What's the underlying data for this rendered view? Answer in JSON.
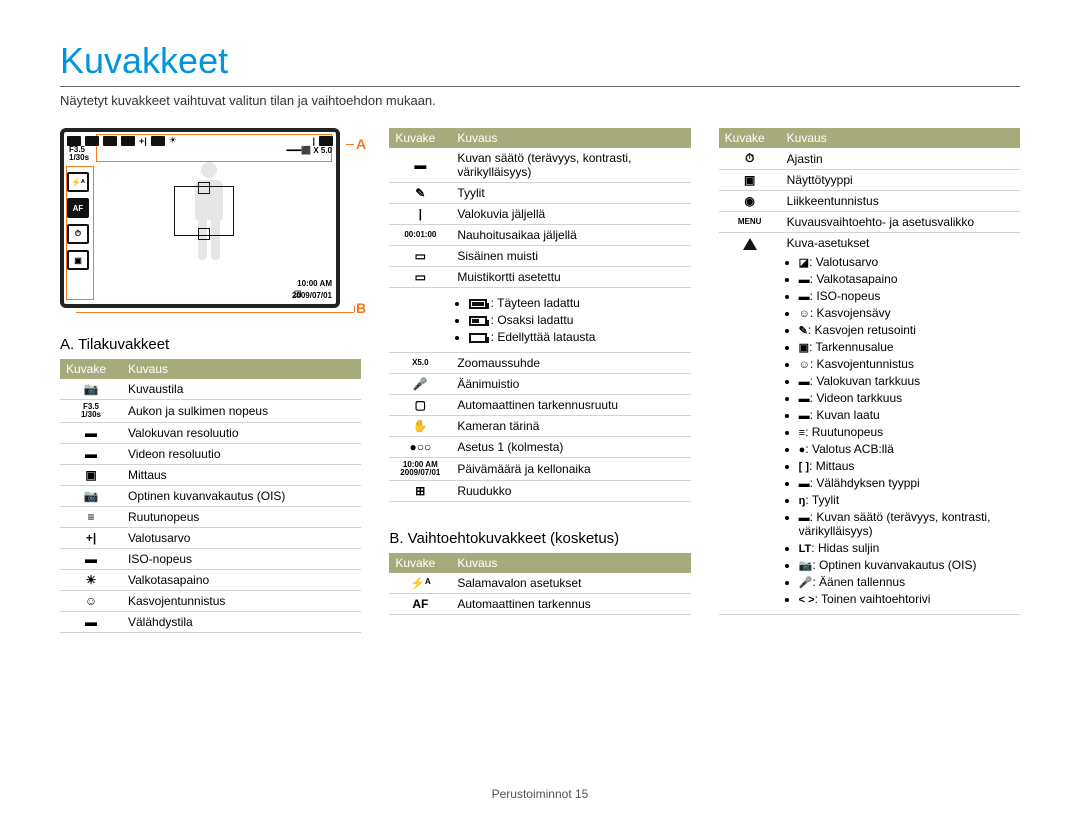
{
  "page": {
    "title": "Kuvakkeet",
    "subtitle": "Näytetyt kuvakkeet vaihtuvat valitun tilan ja vaihtoehdon mukaan.",
    "footer": "Perustoiminnot  15"
  },
  "labels": {
    "A": "A",
    "B": "B"
  },
  "screen": {
    "f": "F3.5",
    "shutter": "1/30s",
    "zoom": "X 5.0",
    "time": "10:00 AM",
    "date": "2009/07/01",
    "af": "AF",
    "fla": "⚡ᴬ"
  },
  "sectionA": {
    "title": "A. Tilakuvakkeet",
    "cols": {
      "icon": "Kuvake",
      "desc": "Kuvaus"
    },
    "rows": [
      {
        "icon": "📷",
        "desc": "Kuvaustila"
      },
      {
        "icon": "F3.5\n1/30s",
        "desc": "Aukon ja sulkimen nopeus",
        "small": true
      },
      {
        "icon": "▬",
        "desc": "Valokuvan resoluutio"
      },
      {
        "icon": "▬",
        "desc": "Videon resoluutio"
      },
      {
        "icon": "▣",
        "desc": "Mittaus"
      },
      {
        "icon": "📷",
        "desc": "Optinen kuvanvakautus (OIS)"
      },
      {
        "icon": "≡",
        "desc": "Ruutunopeus"
      },
      {
        "icon": "+|",
        "desc": "Valotusarvo"
      },
      {
        "icon": "▬",
        "desc": "ISO-nopeus"
      },
      {
        "icon": "☀",
        "desc": "Valkotasapaino"
      },
      {
        "icon": "☺",
        "desc": "Kasvojentunnistus"
      },
      {
        "icon": "▬",
        "desc": "Välähdystila"
      }
    ]
  },
  "sectionA2": {
    "cols": {
      "icon": "Kuvake",
      "desc": "Kuvaus"
    },
    "rows": [
      {
        "icon": "▬",
        "desc": "Kuvan säätö (terävyys, kontrasti, värikylläisyys)"
      },
      {
        "icon": "✎",
        "desc": "Tyylit"
      },
      {
        "icon": "|",
        "desc": "Valokuvia jäljellä"
      },
      {
        "icon": "00:01:00",
        "desc": "Nauhoitusaikaa jäljellä",
        "small": true
      },
      {
        "icon": "▭",
        "desc": "Sisäinen muisti"
      },
      {
        "icon": "▭",
        "desc": "Muistikortti asetettu"
      }
    ],
    "battery": [
      {
        "cls": "full",
        "desc": ": Täyteen ladattu"
      },
      {
        "cls": "half",
        "desc": ": Osaksi ladattu"
      },
      {
        "cls": "",
        "desc": ": Edellyttää latausta"
      }
    ],
    "rows2": [
      {
        "icon": "X5.0",
        "desc": "Zoomaussuhde",
        "small": true
      },
      {
        "icon": "🎤",
        "desc": "Äänimuistio"
      },
      {
        "icon": "▢",
        "desc": "Automaattinen tarkennusruutu"
      },
      {
        "icon": "✋",
        "desc": "Kameran tärinä"
      },
      {
        "icon": "●○○",
        "desc": "Asetus 1 (kolmesta)"
      },
      {
        "icon": "10:00 AM\n2009/07/01",
        "desc": "Päivämäärä ja kellonaika",
        "small": true
      },
      {
        "icon": "⊞",
        "desc": "Ruudukko"
      }
    ]
  },
  "sectionB": {
    "title": "B. Vaihtoehtokuvakkeet (kosketus)",
    "cols": {
      "icon": "Kuvake",
      "desc": "Kuvaus"
    },
    "rows": [
      {
        "icon": "⚡ᴬ",
        "desc": "Salamavalon asetukset"
      },
      {
        "icon": "AF",
        "desc": "Automaattinen tarkennus"
      }
    ]
  },
  "sectionB2": {
    "cols": {
      "icon": "Kuvake",
      "desc": "Kuvaus"
    },
    "rows": [
      {
        "icon": "⏱",
        "desc": "Ajastin"
      },
      {
        "icon": "▣",
        "desc": "Näyttötyyppi"
      },
      {
        "icon": "◉",
        "desc": "Liikkeentunnistus"
      },
      {
        "icon": "MENU",
        "desc": "Kuvausvaihtoehto- ja asetusvalikko",
        "small": true
      }
    ],
    "settings_label": "Kuva-asetukset",
    "bullets": [
      "Valotusarvo",
      "Valkotasapaino",
      "ISO-nopeus",
      "Kasvojensävy",
      "Kasvojen retusointi",
      "Tarkennusalue",
      "Kasvojentunnistus",
      "Valokuvan tarkkuus",
      "Videon tarkkuus",
      "Kuvan laatu",
      "Ruutunopeus",
      "Valotus ACB:llä",
      "Mittaus",
      "Välähdyksen tyyppi",
      "Tyylit",
      "Kuvan säätö (terävyys, kontrasti, värikylläisyys)",
      "Hidas suljin",
      "Optinen kuvanvakautus (OIS)",
      "Äänen tallennus",
      "Toinen vaihtoehtorivi"
    ],
    "bullet_prefixes": [
      "◪",
      "▬",
      "▬",
      "☺",
      "✎",
      "▣",
      "☺",
      "▬",
      "▬",
      "▬",
      "≡",
      "●",
      "[ ]",
      "▬",
      "ŋ",
      "▬",
      "LT",
      "📷",
      "🎤",
      "< >"
    ]
  }
}
